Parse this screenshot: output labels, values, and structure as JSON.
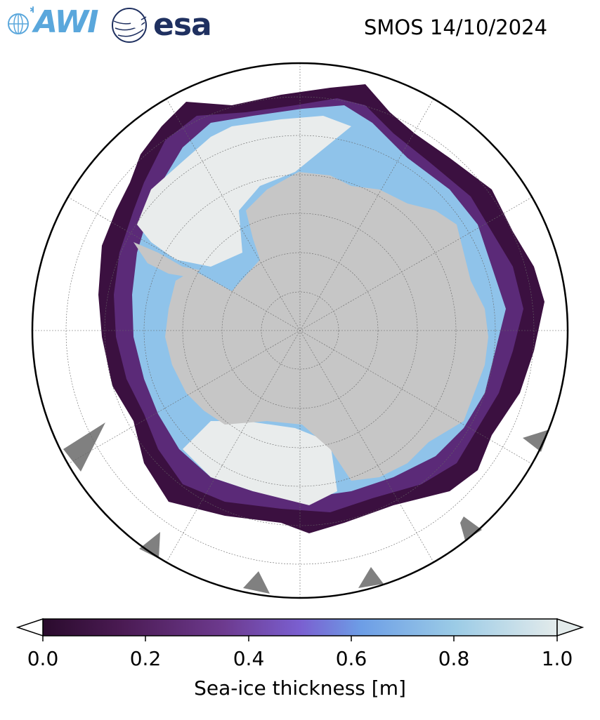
{
  "header": {
    "title": "SMOS 14/10/2024",
    "logos": [
      {
        "name": "awi-logo",
        "text": "AWI",
        "color": "#5aa7dc"
      },
      {
        "name": "esa-logo",
        "text": "esa",
        "color": "#1f3060"
      }
    ]
  },
  "map": {
    "projection": "south-polar-stereographic",
    "graticule": true,
    "land_color": "#c6c6c6",
    "ocean_color": "#ffffff",
    "other_land_color": "#808080"
  },
  "colorbar": {
    "label": "Sea-ice thickness [m]",
    "min": 0.0,
    "max": 1.0,
    "extend": "both",
    "ticks": [
      "0.0",
      "0.2",
      "0.4",
      "0.6",
      "0.8",
      "1.0"
    ],
    "colormap": [
      "#2a0b2d",
      "#4a1a52",
      "#6d3a8e",
      "#7a5fd0",
      "#6d9ee6",
      "#9bcbe6",
      "#e3ebeb"
    ]
  }
}
